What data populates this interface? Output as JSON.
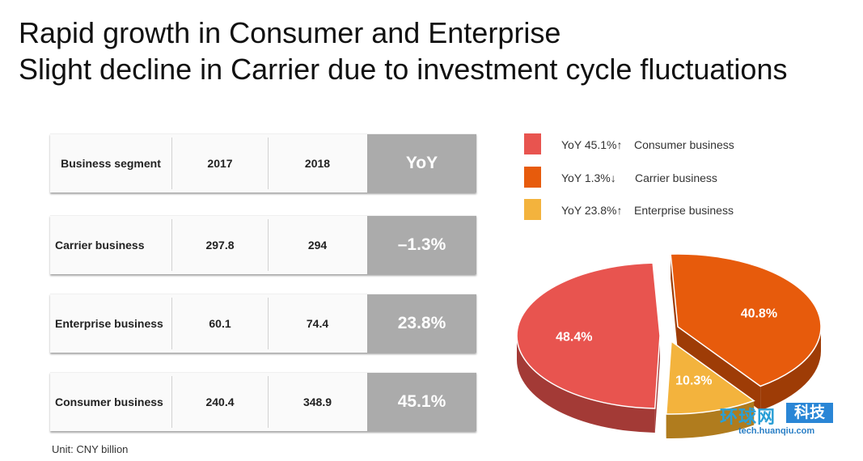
{
  "title": {
    "line1": "Rapid growth in Consumer and Enterprise",
    "line2": "Slight decline in Carrier due to investment cycle fluctuations"
  },
  "table": {
    "headers": [
      "Business segment",
      "2017",
      "2018",
      "YoY"
    ],
    "rows": [
      {
        "segment": "Carrier business",
        "y2017": "297.8",
        "y2018": "294",
        "yoy": "–1.3%"
      },
      {
        "segment": "Enterprise business",
        "y2017": "60.1",
        "y2018": "74.4",
        "yoy": "23.8%"
      },
      {
        "segment": "Consumer business",
        "y2017": "240.4",
        "y2018": "348.9",
        "yoy": "45.1%"
      }
    ]
  },
  "unit": "Unit: CNY billion",
  "legend": [
    {
      "yoy": "YoY 45.1%↑",
      "name": "Consumer business",
      "color": "#e8544f"
    },
    {
      "yoy": "YoY 1.3%↓",
      "name": "Carrier business",
      "color": "#e75b0c"
    },
    {
      "yoy": "YoY 23.8%↑",
      "name": "Enterprise business",
      "color": "#f3b33d"
    }
  ],
  "chart_data": {
    "type": "pie",
    "title": "",
    "slices": [
      {
        "name": "Consumer business",
        "value": 48.4,
        "label": "48.4%",
        "color": "#e8544f",
        "side": "#a33a36"
      },
      {
        "name": "Carrier business",
        "value": 40.8,
        "label": "40.8%",
        "color": "#e75b0c",
        "side": "#9e3c06"
      },
      {
        "name": "Enterprise business",
        "value": 10.3,
        "label": "10.3%",
        "color": "#f3b33d",
        "side": "#b07c1e"
      }
    ]
  },
  "watermark": {
    "brand": "环球网",
    "tag": "科技",
    "site": "tech.huanqiu.com"
  }
}
